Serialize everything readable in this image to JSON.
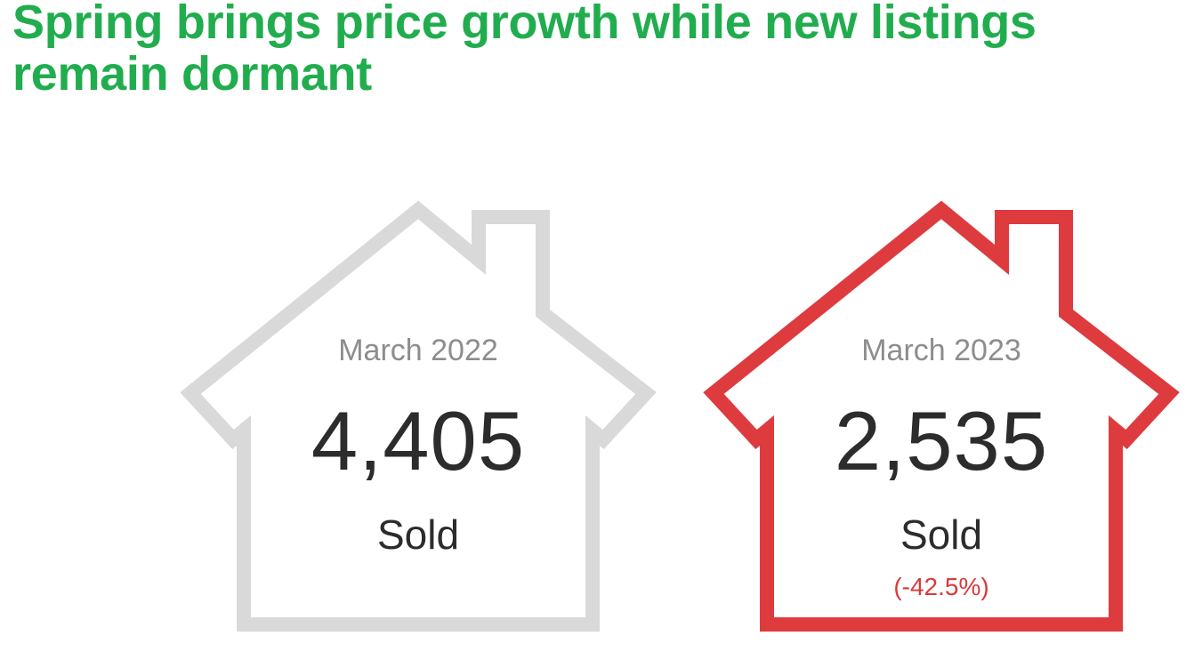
{
  "headline": "Spring brings price growth while new listings remain dormant",
  "colors": {
    "headline": "#21ad4e",
    "house_previous": "#d9d9d9",
    "house_current": "#de3b3f",
    "change_text": "#d93a3a"
  },
  "cards": [
    {
      "period": "March 2022",
      "value": "4,405",
      "metric": "Sold",
      "change": ""
    },
    {
      "period": "March 2023",
      "value": "2,535",
      "metric": "Sold",
      "change": "(-42.5%)"
    }
  ]
}
